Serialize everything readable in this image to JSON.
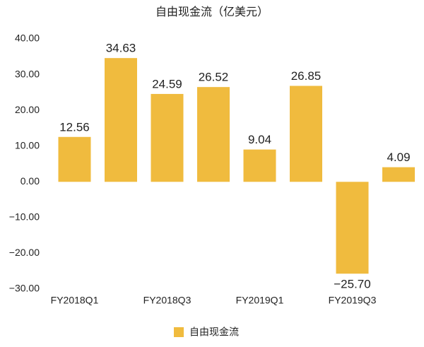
{
  "chart_data": {
    "type": "bar",
    "title": "自由现金流（亿美元）",
    "categories": [
      "FY2018Q1",
      null,
      "FY2018Q3",
      null,
      "FY2019Q1",
      null,
      "FY2019Q3",
      null
    ],
    "series": [
      {
        "name": "自由现金流",
        "color": "#f0bb3e",
        "values": [
          12.56,
          34.63,
          24.59,
          26.52,
          9.04,
          26.85,
          -25.7,
          4.09
        ],
        "value_labels": [
          "12.56",
          "34.63",
          "24.59",
          "26.52",
          "9.04",
          "26.85",
          "−25.70",
          "4.09"
        ]
      }
    ],
    "ylim": [
      -30,
      40
    ],
    "yticks": [
      {
        "value": -30,
        "label": "−30.00"
      },
      {
        "value": -20,
        "label": "−20.00"
      },
      {
        "value": -10,
        "label": "−10.00"
      },
      {
        "value": 0,
        "label": "0.00"
      },
      {
        "value": 10,
        "label": "10.00"
      },
      {
        "value": 20,
        "label": "20.00"
      },
      {
        "value": 30,
        "label": "30.00"
      },
      {
        "value": 40,
        "label": "40.00"
      }
    ]
  }
}
